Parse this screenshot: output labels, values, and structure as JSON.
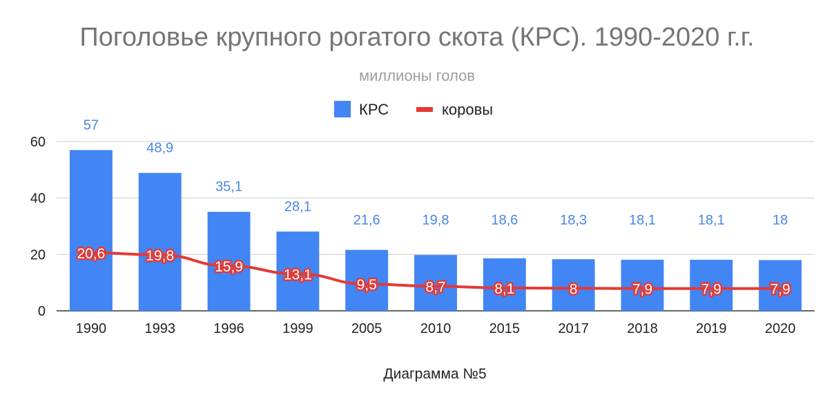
{
  "chart_data": {
    "type": "bar",
    "title": "Поголовье крупного рогатого скота (КРС). 1990-2020 г.г.",
    "subtitle": "миллионы голов",
    "xlabel": "Диаграмма №5",
    "ylabel": "",
    "ylim": [
      0,
      60
    ],
    "yticks": [
      "0",
      "20",
      "40",
      "60"
    ],
    "grid": true,
    "legend_position": "top",
    "categories": [
      "1990",
      "1993",
      "1996",
      "1999",
      "2005",
      "2010",
      "2015",
      "2017",
      "2018",
      "2019",
      "2020"
    ],
    "series": [
      {
        "name": "КРС",
        "kind": "bar",
        "color": "#4285f4",
        "values": [
          57,
          48.9,
          35.1,
          28.1,
          21.6,
          19.8,
          18.6,
          18.3,
          18.1,
          18.1,
          18
        ],
        "labels": [
          "57",
          "48,9",
          "35,1",
          "28,1",
          "21,6",
          "19,8",
          "18,6",
          "18,3",
          "18,1",
          "18,1",
          "18"
        ]
      },
      {
        "name": "коровы",
        "kind": "line",
        "color": "#e53935",
        "values": [
          20.6,
          19.8,
          15.9,
          13.1,
          9.5,
          8.7,
          8.1,
          8,
          7.9,
          7.9,
          7.9
        ],
        "labels": [
          "20,6",
          "19,8",
          "15,9",
          "13,1",
          "9,5",
          "8,7",
          "8,1",
          "8",
          "7,9",
          "7,9",
          "7,9"
        ]
      }
    ]
  }
}
